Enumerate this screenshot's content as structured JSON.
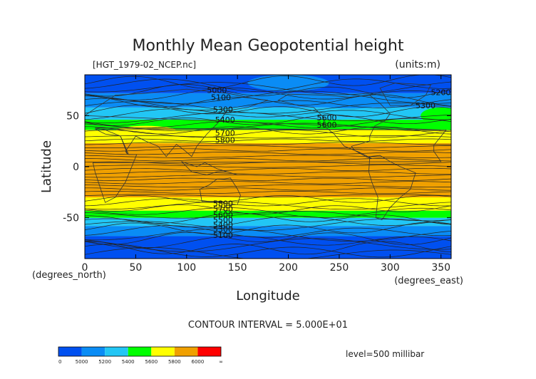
{
  "chart_data": {
    "type": "heatmap",
    "title": "Monthly Mean Geopotential height",
    "file_label": "[HGT_1979-02_NCEP.nc]",
    "units_label": "(units:m)",
    "xlabel": "Longitude",
    "ylabel": "Latitude",
    "x_units_label": "(degrees_east)",
    "y_units_label": "(degrees_north)",
    "xlim": [
      0,
      360
    ],
    "ylim": [
      -90,
      90
    ],
    "x_ticks": [
      0,
      50,
      100,
      150,
      200,
      250,
      300,
      350
    ],
    "y_ticks": [
      -50,
      0,
      50
    ],
    "contour_interval_text": "CONTOUR INTERVAL = 5.000E+01",
    "level_text": "level=500 millibar",
    "colorbar": {
      "tick_labels": [
        "0",
        "5000",
        "5200",
        "5400",
        "5600",
        "5800",
        "6000",
        "∞"
      ],
      "colors": [
        "#0050f0",
        "#0a8cf5",
        "#22c6f5",
        "#00ff00",
        "#ffff00",
        "#f0a000",
        "#ff0000"
      ]
    },
    "zonal_bands": [
      {
        "lat": [
          -90,
          -68
        ],
        "range": "below 5000",
        "color": "#0050f0"
      },
      {
        "lat": [
          -68,
          -58
        ],
        "range": "5000-5200",
        "color": "#0a8cf5"
      },
      {
        "lat": [
          -58,
          -50
        ],
        "range": "5200-5400",
        "color": "#22c6f5"
      },
      {
        "lat": [
          -50,
          -43
        ],
        "range": "5400-5600",
        "color": "#00ff00"
      },
      {
        "lat": [
          -43,
          -30
        ],
        "range": "5600-5800",
        "color": "#ffff00"
      },
      {
        "lat": [
          -30,
          23
        ],
        "range": "5800-6000",
        "color": "#f0a000"
      },
      {
        "lat": [
          23,
          36
        ],
        "range": "5600-5800",
        "color": "#ffff00"
      },
      {
        "lat": [
          36,
          46
        ],
        "range": "5400-5600",
        "color": "#00ff00"
      },
      {
        "lat": [
          46,
          58
        ],
        "range": "5200-5400",
        "color": "#22c6f5"
      },
      {
        "lat": [
          58,
          72
        ],
        "range": "5000-5200",
        "color": "#0a8cf5"
      },
      {
        "lat": [
          72,
          90
        ],
        "range": "below 5000",
        "color": "#0050f0"
      }
    ],
    "contour_labels": [
      {
        "text": "5000",
        "lon": 120,
        "lat": 75
      },
      {
        "text": "5100",
        "lon": 124,
        "lat": 68
      },
      {
        "text": "5300",
        "lon": 126,
        "lat": 56
      },
      {
        "text": "5400",
        "lon": 128,
        "lat": 46
      },
      {
        "text": "5600",
        "lon": 228,
        "lat": 48
      },
      {
        "text": "5600",
        "lon": 228,
        "lat": 41
      },
      {
        "text": "5700",
        "lon": 128,
        "lat": 33
      },
      {
        "text": "5800",
        "lon": 128,
        "lat": 26
      },
      {
        "text": "5200",
        "lon": 340,
        "lat": 73
      },
      {
        "text": "5300",
        "lon": 325,
        "lat": 60
      },
      {
        "text": "5800",
        "lon": 126,
        "lat": -36
      },
      {
        "text": "5700",
        "lon": 126,
        "lat": -41
      },
      {
        "text": "5600",
        "lon": 126,
        "lat": -47
      },
      {
        "text": "5500",
        "lon": 126,
        "lat": -52
      },
      {
        "text": "5400",
        "lon": 126,
        "lat": -57
      },
      {
        "text": "5300",
        "lon": 126,
        "lat": -61
      },
      {
        "text": "5100",
        "lon": 126,
        "lat": -67
      }
    ]
  }
}
